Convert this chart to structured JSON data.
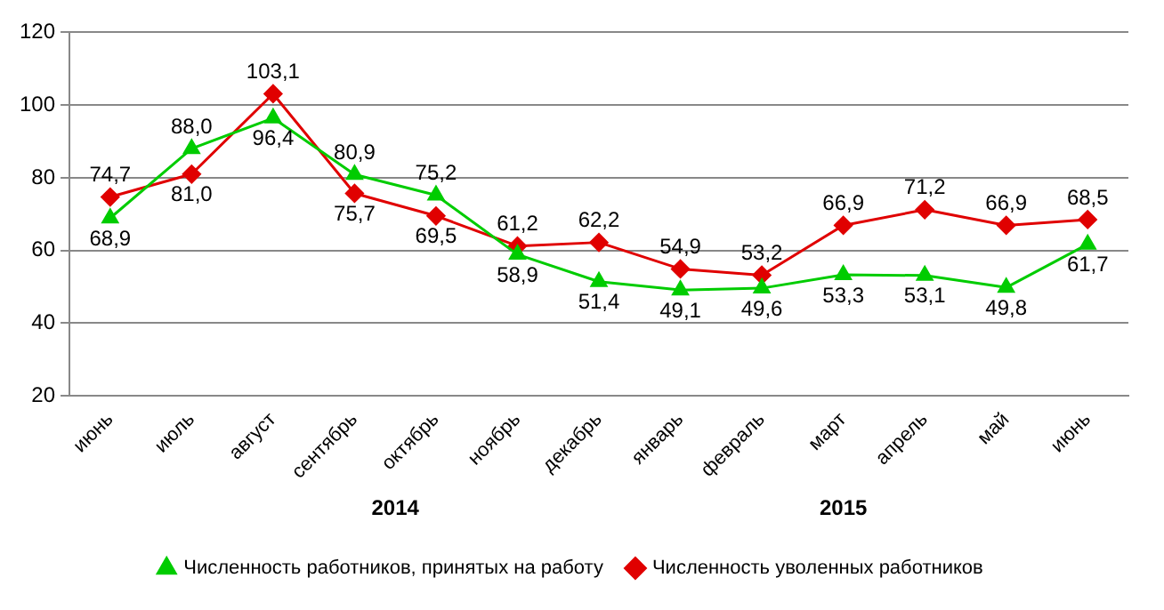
{
  "chart_data": {
    "type": "line",
    "categories": [
      "июнь",
      "июль",
      "август",
      "сентябрь",
      "октябрь",
      "ноябрь",
      "декабрь",
      "январь",
      "февраль",
      "март",
      "апрель",
      "май",
      "июнь"
    ],
    "series": [
      {
        "name": "Численность работников, принятых на работу",
        "color": "#00cc00",
        "marker": "triangle",
        "values": [
          68.9,
          88.0,
          96.4,
          80.9,
          75.2,
          58.9,
          51.4,
          49.1,
          49.6,
          53.3,
          53.1,
          49.8,
          61.7
        ],
        "value_labels": [
          "68,9",
          "88,0",
          "96,4",
          "80,9",
          "75,2",
          "58,9",
          "51,4",
          "49,1",
          "49,6",
          "53,3",
          "53,1",
          "49,8",
          "61,7"
        ]
      },
      {
        "name": "Численность уволенных работников",
        "color": "#e00000",
        "marker": "diamond",
        "values": [
          74.7,
          81.0,
          103.1,
          75.7,
          69.5,
          61.2,
          62.2,
          54.9,
          53.2,
          66.9,
          71.2,
          66.9,
          68.5
        ],
        "value_labels": [
          "74,7",
          "81,0",
          "103,1",
          "75,7",
          "69,5",
          "61,2",
          "62,2",
          "54,9",
          "53,2",
          "66,9",
          "71,2",
          "66,9",
          "68,5"
        ]
      }
    ],
    "ylim": [
      20,
      120
    ],
    "yticks": [
      20,
      40,
      60,
      80,
      100,
      120
    ],
    "grid": "y",
    "legend": "bottom",
    "line_style": "solid",
    "annotations": [
      "2014",
      "2015"
    ]
  }
}
